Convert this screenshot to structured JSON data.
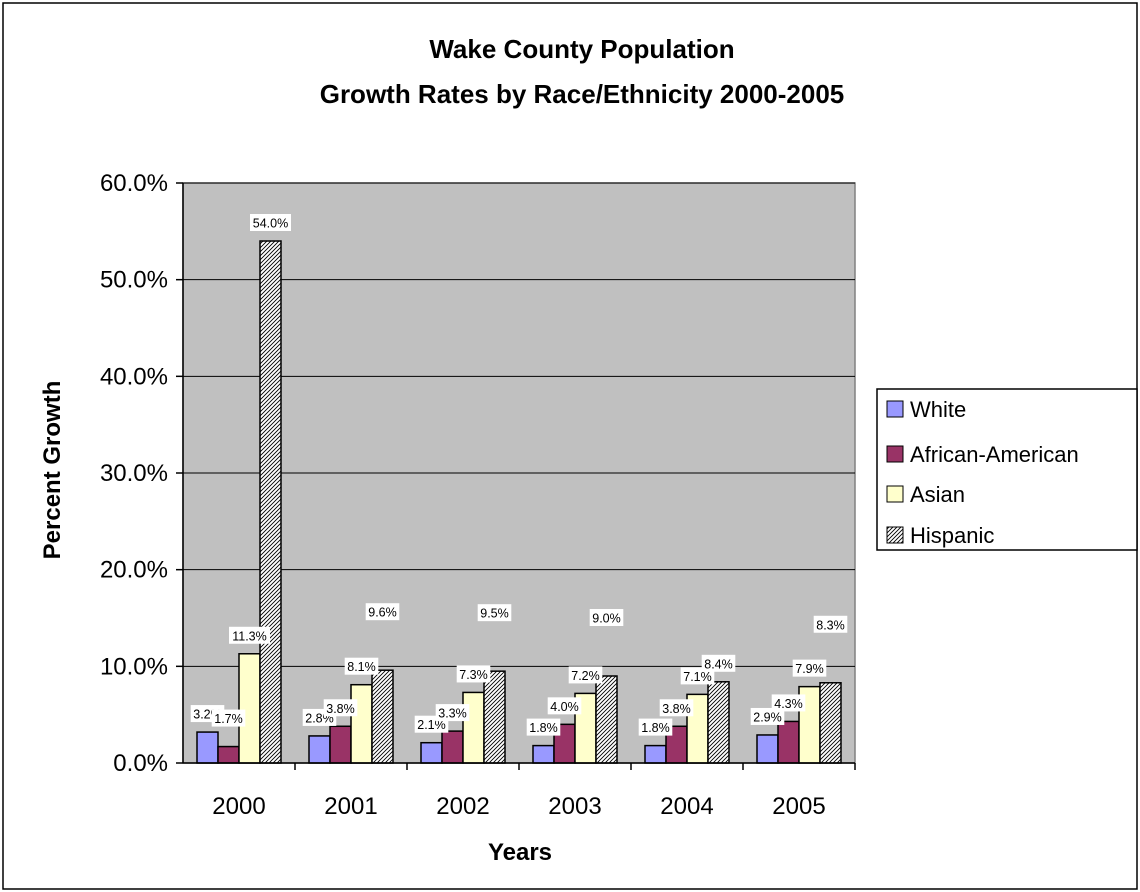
{
  "chart_data": {
    "type": "bar",
    "title_lines": [
      "Wake County Population",
      "Growth Rates by Race/Ethnicity 2000-2005"
    ],
    "xlabel": "Years",
    "ylabel": "Percent Growth",
    "categories": [
      "2000",
      "2001",
      "2002",
      "2003",
      "2004",
      "2005"
    ],
    "ylim": [
      0,
      60
    ],
    "yticks": [
      "0.0%",
      "10.0%",
      "20.0%",
      "30.0%",
      "40.0%",
      "50.0%",
      "60.0%"
    ],
    "grid": true,
    "legend_position": "right",
    "series": [
      {
        "name": "White",
        "color": "#9999ff",
        "pattern": "solid",
        "values": [
          3.2,
          2.8,
          2.1,
          1.8,
          1.8,
          2.9
        ],
        "labels": [
          "3.2%",
          "2.8%",
          "2.1%",
          "1.8%",
          "1.8%",
          "2.9%"
        ]
      },
      {
        "name": "African-American",
        "color": "#993366",
        "pattern": "solid",
        "values": [
          1.7,
          3.8,
          3.3,
          4.0,
          3.8,
          4.3
        ],
        "labels": [
          "1.7%",
          "3.8%",
          "3.3%",
          "4.0%",
          "3.8%",
          "4.3%"
        ]
      },
      {
        "name": "Asian",
        "color": "#ffffcc",
        "pattern": "solid",
        "values": [
          11.3,
          8.1,
          7.3,
          7.2,
          7.1,
          7.9
        ],
        "labels": [
          "11.3%",
          "8.1%",
          "7.3%",
          "7.2%",
          "7.1%",
          "7.9%"
        ]
      },
      {
        "name": "Hispanic",
        "color": "#c0c0c0",
        "pattern": "hatch",
        "values": [
          54.0,
          9.6,
          9.5,
          9.0,
          8.4,
          8.3
        ],
        "labels": [
          "54.0%",
          "9.6%",
          "9.5%",
          "9.0%",
          "8.4%",
          "8.3%"
        ]
      }
    ],
    "colors": {
      "plot_background": "#c0c0c0",
      "frame": "#000000"
    }
  }
}
